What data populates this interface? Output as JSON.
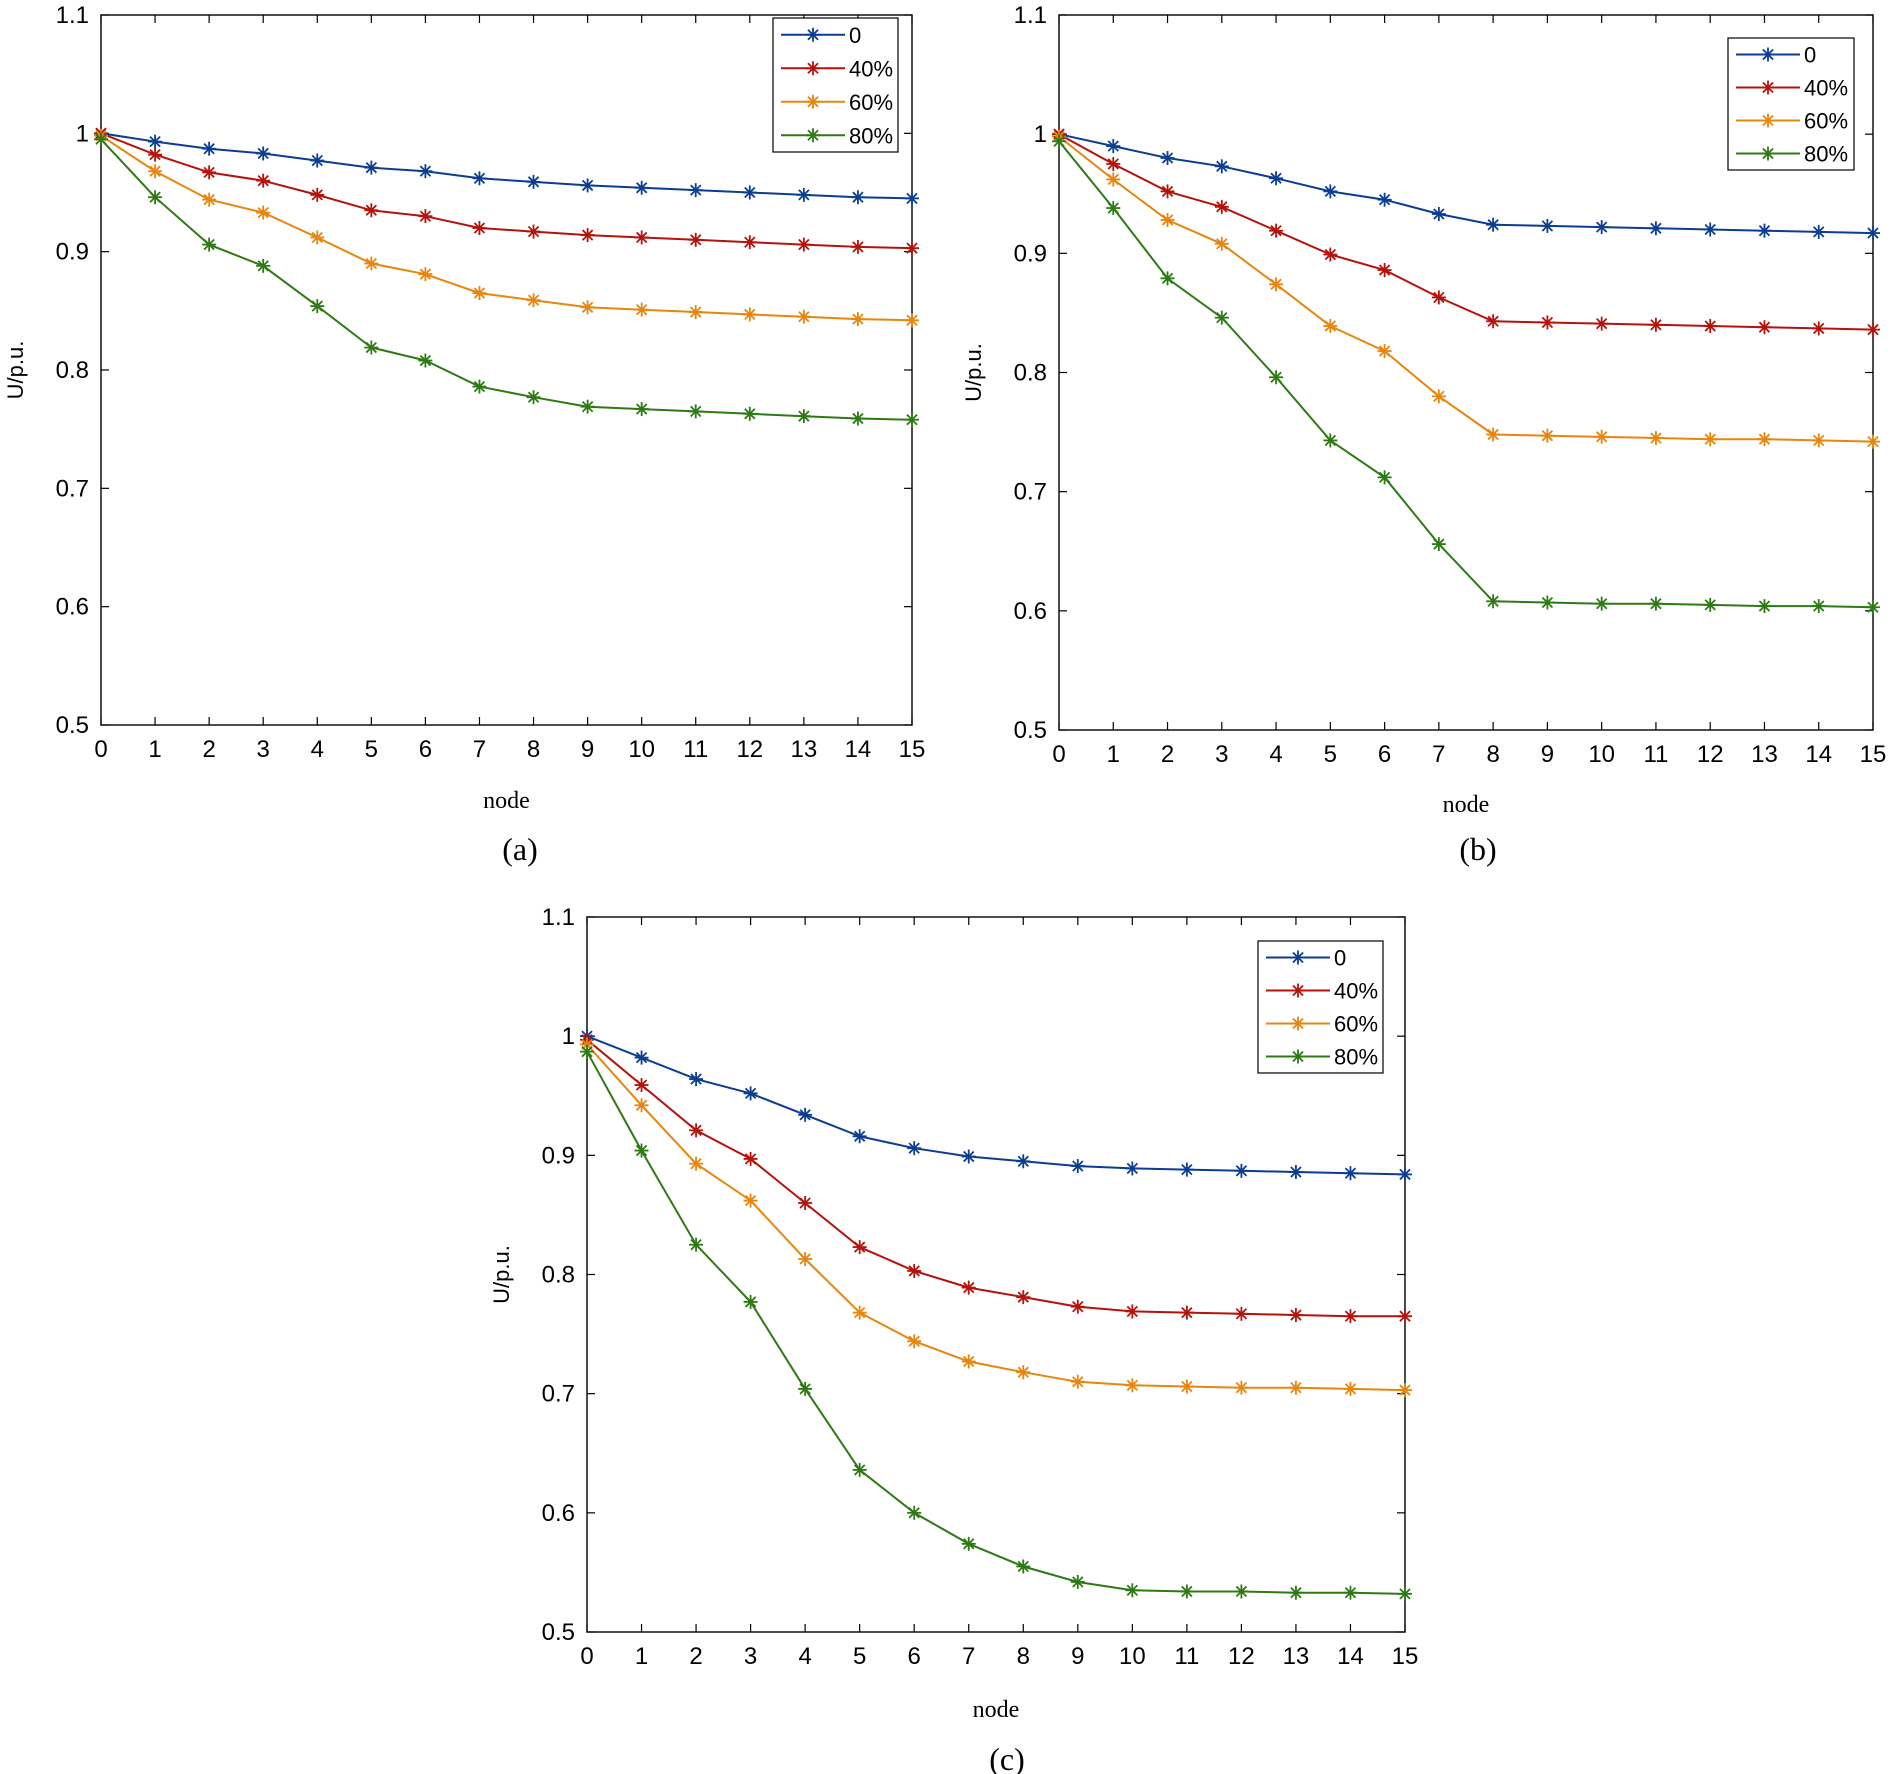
{
  "chart_data": [
    {
      "type": "line",
      "caption": "(a)",
      "xlabel": "node",
      "ylabel": "U/p.u.",
      "xlim": [
        0,
        15
      ],
      "ylim": [
        0.5,
        1.1
      ],
      "xticks": [
        "0",
        "1",
        "2",
        "3",
        "4",
        "5",
        "6",
        "7",
        "8",
        "9",
        "10",
        "11",
        "12",
        "13",
        "14",
        "15"
      ],
      "yticks": [
        "0.5",
        "0.6",
        "0.7",
        "0.8",
        "0.9",
        "1",
        "1.1"
      ],
      "x": [
        0,
        1,
        2,
        3,
        4,
        5,
        6,
        7,
        8,
        9,
        10,
        11,
        12,
        13,
        14,
        15
      ],
      "legend_position": "top-right",
      "series": [
        {
          "name": "0",
          "color": "#0b3d91",
          "values": [
            1.0,
            0.993,
            0.987,
            0.983,
            0.977,
            0.971,
            0.968,
            0.962,
            0.959,
            0.956,
            0.954,
            0.952,
            0.95,
            0.948,
            0.946,
            0.945
          ]
        },
        {
          "name": "40%",
          "color": "#b5120b",
          "values": [
            1.0,
            0.982,
            0.967,
            0.96,
            0.948,
            0.935,
            0.93,
            0.92,
            0.917,
            0.914,
            0.912,
            0.91,
            0.908,
            0.906,
            0.904,
            0.903
          ]
        },
        {
          "name": "60%",
          "color": "#e8850c",
          "values": [
            0.998,
            0.968,
            0.944,
            0.933,
            0.912,
            0.89,
            0.881,
            0.865,
            0.859,
            0.853,
            0.851,
            0.849,
            0.847,
            0.845,
            0.843,
            0.842
          ]
        },
        {
          "name": "80%",
          "color": "#2d7a14",
          "values": [
            0.995,
            0.946,
            0.906,
            0.888,
            0.854,
            0.819,
            0.808,
            0.786,
            0.777,
            0.769,
            0.767,
            0.765,
            0.763,
            0.761,
            0.759,
            0.758
          ]
        }
      ]
    },
    {
      "type": "line",
      "caption": "(b)",
      "xlabel": "node",
      "ylabel": "U/p.u.",
      "xlim": [
        0,
        15
      ],
      "ylim": [
        0.5,
        1.1
      ],
      "xticks": [
        "0",
        "1",
        "2",
        "3",
        "4",
        "5",
        "6",
        "7",
        "8",
        "9",
        "10",
        "11",
        "12",
        "13",
        "14",
        "15"
      ],
      "yticks": [
        "0.5",
        "0.6",
        "0.7",
        "0.8",
        "0.9",
        "1",
        "1.1"
      ],
      "x": [
        0,
        1,
        2,
        3,
        4,
        5,
        6,
        7,
        8,
        9,
        10,
        11,
        12,
        13,
        14,
        15
      ],
      "legend_position": "top-right",
      "series": [
        {
          "name": "0",
          "color": "#0b3d91",
          "values": [
            1.0,
            0.99,
            0.98,
            0.973,
            0.963,
            0.952,
            0.945,
            0.933,
            0.924,
            0.923,
            0.922,
            0.921,
            0.92,
            0.919,
            0.918,
            0.917
          ]
        },
        {
          "name": "40%",
          "color": "#b5120b",
          "values": [
            1.0,
            0.975,
            0.952,
            0.939,
            0.919,
            0.899,
            0.886,
            0.863,
            0.843,
            0.842,
            0.841,
            0.84,
            0.839,
            0.838,
            0.837,
            0.836
          ]
        },
        {
          "name": "60%",
          "color": "#e8850c",
          "values": [
            0.998,
            0.962,
            0.928,
            0.908,
            0.874,
            0.839,
            0.818,
            0.78,
            0.748,
            0.747,
            0.746,
            0.745,
            0.744,
            0.744,
            0.743,
            0.742
          ]
        },
        {
          "name": "80%",
          "color": "#2d7a14",
          "values": [
            0.994,
            0.938,
            0.879,
            0.846,
            0.796,
            0.743,
            0.712,
            0.656,
            0.608,
            0.607,
            0.606,
            0.606,
            0.605,
            0.604,
            0.604,
            0.603
          ]
        }
      ]
    },
    {
      "type": "line",
      "caption": "(c)",
      "xlabel": "node",
      "ylabel": "U/p.u.",
      "xlim": [
        0,
        15
      ],
      "ylim": [
        0.5,
        1.1
      ],
      "xticks": [
        "0",
        "1",
        "2",
        "3",
        "4",
        "5",
        "6",
        "7",
        "8",
        "9",
        "10",
        "11",
        "12",
        "13",
        "14",
        "15"
      ],
      "yticks": [
        "0.5",
        "0.6",
        "0.7",
        "0.8",
        "0.9",
        "1",
        "1.1"
      ],
      "x": [
        0,
        1,
        2,
        3,
        4,
        5,
        6,
        7,
        8,
        9,
        10,
        11,
        12,
        13,
        14,
        15
      ],
      "legend_position": "top-right",
      "series": [
        {
          "name": "0",
          "color": "#0b3d91",
          "values": [
            1.0,
            0.982,
            0.964,
            0.952,
            0.934,
            0.916,
            0.906,
            0.899,
            0.895,
            0.891,
            0.889,
            0.888,
            0.887,
            0.886,
            0.885,
            0.884
          ]
        },
        {
          "name": "40%",
          "color": "#b5120b",
          "values": [
            0.997,
            0.959,
            0.921,
            0.897,
            0.86,
            0.823,
            0.803,
            0.789,
            0.781,
            0.773,
            0.769,
            0.768,
            0.767,
            0.766,
            0.765,
            0.765
          ]
        },
        {
          "name": "60%",
          "color": "#e8850c",
          "values": [
            0.993,
            0.942,
            0.893,
            0.862,
            0.813,
            0.768,
            0.744,
            0.727,
            0.718,
            0.71,
            0.707,
            0.706,
            0.705,
            0.705,
            0.704,
            0.703
          ]
        },
        {
          "name": "80%",
          "color": "#2d7a14",
          "values": [
            0.987,
            0.904,
            0.825,
            0.777,
            0.704,
            0.636,
            0.6,
            0.574,
            0.555,
            0.542,
            0.535,
            0.534,
            0.534,
            0.533,
            0.533,
            0.532
          ]
        }
      ]
    }
  ]
}
